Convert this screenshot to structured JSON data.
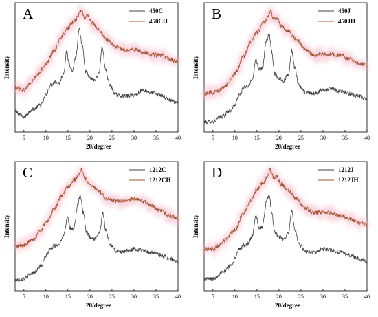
{
  "chart_data": [
    {
      "type": "line",
      "panel_label": "A",
      "xlabel": "2θ/degree",
      "ylabel": "Intensity",
      "xlim": [
        3,
        40
      ],
      "x_ticks": [
        5,
        10,
        15,
        20,
        25,
        30,
        35,
        40
      ],
      "y_ticks_shown": false,
      "legend_position": "top-right",
      "series": [
        {
          "name": "450C",
          "color": "#404040",
          "points": [
            [
              3,
              0.12
            ],
            [
              5,
              0.08
            ],
            [
              7,
              0.14
            ],
            [
              9,
              0.18
            ],
            [
              10,
              0.26
            ],
            [
              11,
              0.34
            ],
            [
              12,
              0.37
            ],
            [
              13,
              0.36
            ],
            [
              14,
              0.44
            ],
            [
              14.7,
              0.62
            ],
            [
              15.3,
              0.52
            ],
            [
              16,
              0.46
            ],
            [
              16.8,
              0.58
            ],
            [
              17.6,
              0.8
            ],
            [
              18.3,
              0.66
            ],
            [
              19,
              0.46
            ],
            [
              20,
              0.4
            ],
            [
              21,
              0.38
            ],
            [
              22,
              0.44
            ],
            [
              22.8,
              0.66
            ],
            [
              23.5,
              0.48
            ],
            [
              24.5,
              0.34
            ],
            [
              26,
              0.26
            ],
            [
              28,
              0.25
            ],
            [
              30,
              0.26
            ],
            [
              32,
              0.3
            ],
            [
              34,
              0.28
            ],
            [
              36,
              0.26
            ],
            [
              38,
              0.22
            ],
            [
              40,
              0.19
            ]
          ]
        },
        {
          "name": "450CH",
          "color": "#a0522d",
          "points": [
            [
              3,
              0.32
            ],
            [
              5,
              0.3
            ],
            [
              6.5,
              0.36
            ],
            [
              8,
              0.42
            ],
            [
              10,
              0.52
            ],
            [
              12,
              0.64
            ],
            [
              13.5,
              0.74
            ],
            [
              15,
              0.82
            ],
            [
              16.5,
              0.88
            ],
            [
              17.5,
              0.93
            ],
            [
              18,
              0.97
            ],
            [
              18.8,
              0.9
            ],
            [
              19.5,
              0.93
            ],
            [
              20.5,
              0.86
            ],
            [
              22,
              0.8
            ],
            [
              24,
              0.72
            ],
            [
              26,
              0.66
            ],
            [
              28,
              0.63
            ],
            [
              30,
              0.64
            ],
            [
              32,
              0.62
            ],
            [
              34,
              0.6
            ],
            [
              36,
              0.59
            ],
            [
              38,
              0.56
            ],
            [
              40,
              0.53
            ]
          ]
        }
      ]
    },
    {
      "type": "line",
      "panel_label": "B",
      "xlabel": "2θ/degree",
      "ylabel": "Intensity",
      "xlim": [
        3,
        40
      ],
      "x_ticks": [
        5,
        10,
        15,
        20,
        25,
        30,
        35,
        40
      ],
      "y_ticks_shown": false,
      "legend_position": "top-right",
      "series": [
        {
          "name": "450J",
          "color": "#404040",
          "points": [
            [
              3,
              0.03
            ],
            [
              5,
              0.04
            ],
            [
              7,
              0.08
            ],
            [
              9,
              0.13
            ],
            [
              10,
              0.18
            ],
            [
              11,
              0.26
            ],
            [
              12,
              0.32
            ],
            [
              13,
              0.33
            ],
            [
              14,
              0.4
            ],
            [
              14.8,
              0.56
            ],
            [
              15.4,
              0.48
            ],
            [
              16.2,
              0.48
            ],
            [
              17.2,
              0.72
            ],
            [
              17.8,
              0.76
            ],
            [
              18.4,
              0.62
            ],
            [
              19,
              0.44
            ],
            [
              20,
              0.4
            ],
            [
              21,
              0.38
            ],
            [
              22.2,
              0.44
            ],
            [
              22.9,
              0.63
            ],
            [
              23.6,
              0.48
            ],
            [
              24.5,
              0.34
            ],
            [
              26,
              0.28
            ],
            [
              28,
              0.27
            ],
            [
              30,
              0.3
            ],
            [
              32,
              0.31
            ],
            [
              34,
              0.29
            ],
            [
              36,
              0.27
            ],
            [
              38,
              0.25
            ],
            [
              40,
              0.22
            ]
          ]
        },
        {
          "name": "450JH",
          "color": "#a0522d",
          "points": [
            [
              3,
              0.27
            ],
            [
              5,
              0.28
            ],
            [
              6.5,
              0.3
            ],
            [
              8,
              0.34
            ],
            [
              10,
              0.44
            ],
            [
              12,
              0.58
            ],
            [
              13.5,
              0.7
            ],
            [
              15,
              0.78
            ],
            [
              16.5,
              0.86
            ],
            [
              17.5,
              0.91
            ],
            [
              18,
              0.96
            ],
            [
              18.8,
              0.9
            ],
            [
              19.5,
              0.9
            ],
            [
              20.5,
              0.84
            ],
            [
              22,
              0.8
            ],
            [
              24,
              0.72
            ],
            [
              26,
              0.64
            ],
            [
              28,
              0.59
            ],
            [
              30,
              0.6
            ],
            [
              32,
              0.6
            ],
            [
              34,
              0.59
            ],
            [
              36,
              0.56
            ],
            [
              38,
              0.53
            ],
            [
              40,
              0.51
            ]
          ]
        }
      ]
    },
    {
      "type": "line",
      "panel_label": "C",
      "xlabel": "2θ/degree",
      "ylabel": "Intensity",
      "xlim": [
        3,
        40
      ],
      "x_ticks": [
        5,
        10,
        15,
        20,
        25,
        30,
        35,
        40
      ],
      "y_ticks_shown": false,
      "legend_position": "top-right",
      "series": [
        {
          "name": "1212C",
          "color": "#404040",
          "points": [
            [
              3,
              0.04
            ],
            [
              5,
              0.05
            ],
            [
              7,
              0.1
            ],
            [
              9,
              0.16
            ],
            [
              10,
              0.24
            ],
            [
              11,
              0.3
            ],
            [
              12,
              0.33
            ],
            [
              13,
              0.34
            ],
            [
              14,
              0.42
            ],
            [
              14.9,
              0.56
            ],
            [
              15.5,
              0.47
            ],
            [
              16.3,
              0.47
            ],
            [
              17.3,
              0.68
            ],
            [
              17.8,
              0.74
            ],
            [
              18.5,
              0.6
            ],
            [
              19.2,
              0.44
            ],
            [
              20,
              0.4
            ],
            [
              21,
              0.38
            ],
            [
              22.2,
              0.44
            ],
            [
              22.9,
              0.6
            ],
            [
              23.6,
              0.46
            ],
            [
              24.5,
              0.34
            ],
            [
              26,
              0.28
            ],
            [
              28,
              0.28
            ],
            [
              30,
              0.3
            ],
            [
              32,
              0.29
            ],
            [
              34,
              0.27
            ],
            [
              36,
              0.25
            ],
            [
              38,
              0.22
            ],
            [
              40,
              0.19
            ]
          ]
        },
        {
          "name": "1212CH",
          "color": "#a0522d",
          "points": [
            [
              3,
              0.32
            ],
            [
              5,
              0.33
            ],
            [
              7,
              0.38
            ],
            [
              9,
              0.46
            ],
            [
              10,
              0.52
            ],
            [
              12,
              0.64
            ],
            [
              13.5,
              0.74
            ],
            [
              15,
              0.82
            ],
            [
              16.5,
              0.88
            ],
            [
              17.5,
              0.92
            ],
            [
              18,
              0.96
            ],
            [
              19,
              0.88
            ],
            [
              20.5,
              0.82
            ],
            [
              22,
              0.78
            ],
            [
              24,
              0.72
            ],
            [
              26,
              0.7
            ],
            [
              28,
              0.7
            ],
            [
              30,
              0.72
            ],
            [
              32,
              0.7
            ],
            [
              34,
              0.66
            ],
            [
              36,
              0.62
            ],
            [
              38,
              0.58
            ],
            [
              40,
              0.55
            ]
          ]
        }
      ]
    },
    {
      "type": "line",
      "panel_label": "D",
      "xlabel": "2θ/degree",
      "ylabel": "Intensity",
      "xlim": [
        3,
        40
      ],
      "x_ticks": [
        5,
        10,
        15,
        20,
        25,
        30,
        35,
        40
      ],
      "y_ticks_shown": false,
      "legend_position": "top-right",
      "series": [
        {
          "name": "1212J",
          "color": "#404040",
          "points": [
            [
              3,
              0.05
            ],
            [
              5,
              0.05
            ],
            [
              7,
              0.1
            ],
            [
              9,
              0.16
            ],
            [
              10,
              0.22
            ],
            [
              11,
              0.3
            ],
            [
              12,
              0.33
            ],
            [
              13,
              0.34
            ],
            [
              14,
              0.42
            ],
            [
              14.8,
              0.58
            ],
            [
              15.4,
              0.48
            ],
            [
              16.2,
              0.48
            ],
            [
              17.2,
              0.7
            ],
            [
              17.8,
              0.74
            ],
            [
              18.4,
              0.6
            ],
            [
              19,
              0.44
            ],
            [
              20,
              0.4
            ],
            [
              21,
              0.38
            ],
            [
              22.2,
              0.44
            ],
            [
              22.9,
              0.62
            ],
            [
              23.6,
              0.46
            ],
            [
              24.5,
              0.34
            ],
            [
              26,
              0.28
            ],
            [
              28,
              0.27
            ],
            [
              30,
              0.3
            ],
            [
              32,
              0.29
            ],
            [
              34,
              0.27
            ],
            [
              36,
              0.25
            ],
            [
              38,
              0.22
            ],
            [
              40,
              0.19
            ]
          ]
        },
        {
          "name": "1212JH",
          "color": "#a0522d",
          "points": [
            [
              3,
              0.3
            ],
            [
              5,
              0.3
            ],
            [
              6.5,
              0.33
            ],
            [
              8,
              0.38
            ],
            [
              10,
              0.46
            ],
            [
              12,
              0.6
            ],
            [
              13.5,
              0.7
            ],
            [
              15,
              0.8
            ],
            [
              16.5,
              0.86
            ],
            [
              17.5,
              0.91
            ],
            [
              18,
              0.96
            ],
            [
              18.8,
              0.9
            ],
            [
              19.5,
              0.9
            ],
            [
              20.5,
              0.84
            ],
            [
              22,
              0.79
            ],
            [
              24,
              0.72
            ],
            [
              26,
              0.64
            ],
            [
              28,
              0.6
            ],
            [
              30,
              0.61
            ],
            [
              32,
              0.6
            ],
            [
              34,
              0.58
            ],
            [
              36,
              0.55
            ],
            [
              38,
              0.52
            ],
            [
              40,
              0.5
            ]
          ]
        }
      ]
    }
  ]
}
